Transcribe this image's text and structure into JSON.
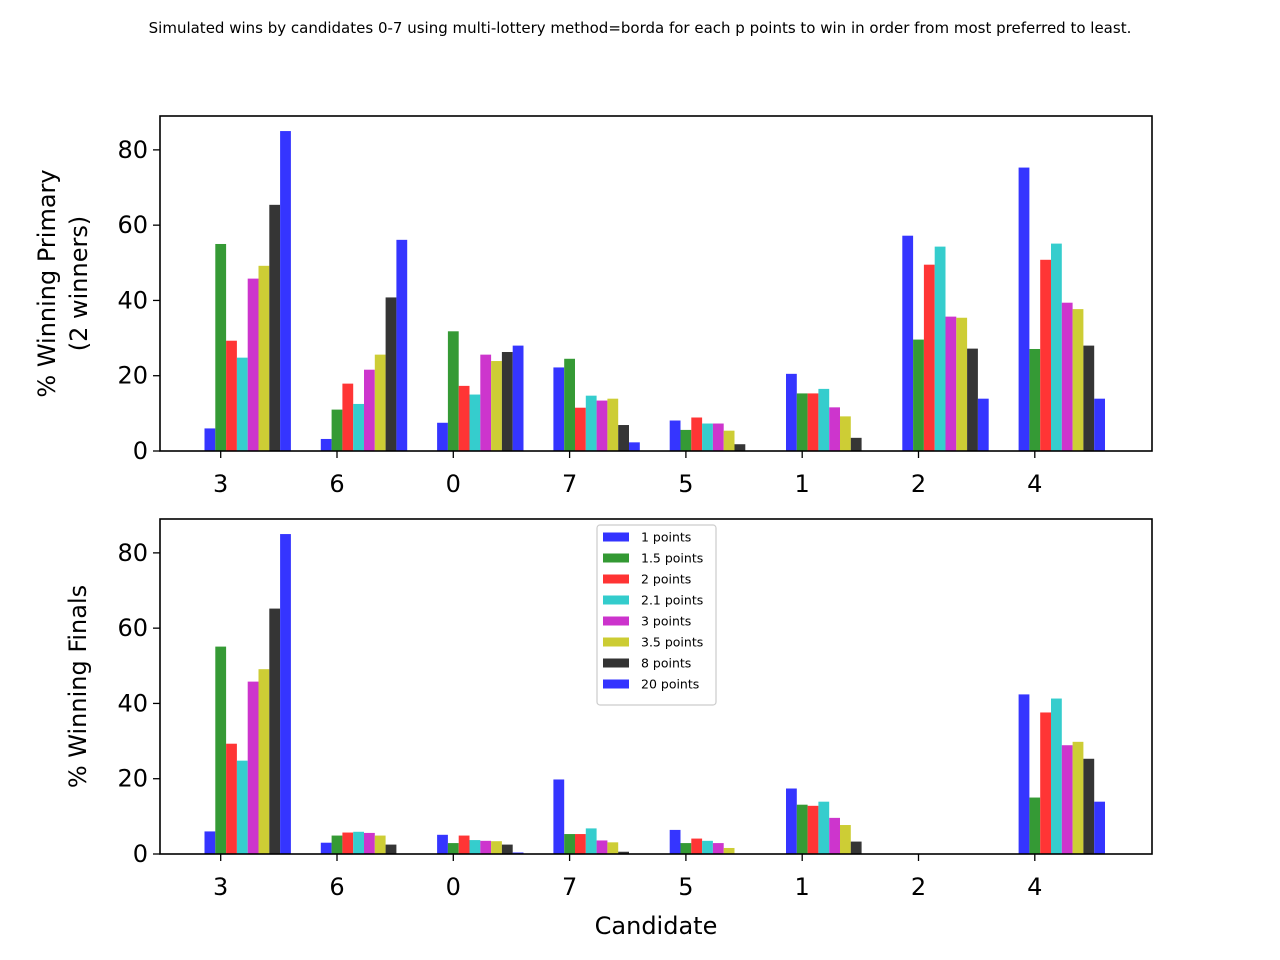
{
  "figure": {
    "title": "Simulated wins by candidates 0-7 using multi-lottery method=borda for each p points to win in order from most preferred to least."
  },
  "chart_data": [
    {
      "type": "bar",
      "ylabel_lines": [
        "% Winning Primary",
        "(2 winners)"
      ],
      "xlabel": "",
      "categories": [
        "3",
        "6",
        "0",
        "7",
        "5",
        "1",
        "2",
        "4"
      ],
      "ylim": [
        0,
        89
      ],
      "yticks": [
        0,
        20,
        40,
        60,
        80
      ],
      "series": [
        {
          "name": "1 points",
          "color": "#3333ff",
          "values": [
            6.0,
            3.2,
            7.5,
            22.2,
            8.1,
            20.5,
            57.2,
            75.3
          ]
        },
        {
          "name": "1.5 points",
          "color": "#339933",
          "values": [
            55.0,
            11.0,
            31.8,
            24.5,
            5.6,
            15.3,
            29.6,
            27.1
          ]
        },
        {
          "name": "2 points",
          "color": "#ff3333",
          "values": [
            29.3,
            17.9,
            17.3,
            11.5,
            8.9,
            15.3,
            49.5,
            50.8
          ]
        },
        {
          "name": "2.1 points",
          "color": "#33cccc",
          "values": [
            24.8,
            12.5,
            15.0,
            14.7,
            7.3,
            16.5,
            54.3,
            55.1
          ]
        },
        {
          "name": "3 points",
          "color": "#cc33cc",
          "values": [
            45.8,
            21.6,
            25.6,
            13.4,
            7.3,
            11.6,
            35.7,
            39.4
          ]
        },
        {
          "name": "3.5 points",
          "color": "#cccc33",
          "values": [
            49.2,
            25.6,
            23.9,
            13.9,
            5.4,
            9.2,
            35.4,
            37.7
          ]
        },
        {
          "name": "8 points",
          "color": "#333333",
          "values": [
            65.4,
            40.8,
            26.3,
            6.9,
            1.8,
            3.5,
            27.2,
            28.0
          ]
        },
        {
          "name": "20 points",
          "color": "#3333ff",
          "values": [
            85.0,
            56.1,
            28.0,
            2.3,
            0.0,
            0.0,
            13.9,
            13.9
          ]
        }
      ]
    },
    {
      "type": "bar",
      "ylabel_lines": [
        "% Winning Finals"
      ],
      "xlabel": "Candidate",
      "categories": [
        "3",
        "6",
        "0",
        "7",
        "5",
        "1",
        "2",
        "4"
      ],
      "ylim": [
        0,
        89
      ],
      "yticks": [
        0,
        20,
        40,
        60,
        80
      ],
      "legend": "upper center",
      "series": [
        {
          "name": "1 points",
          "color": "#3333ff",
          "values": [
            6.0,
            3.0,
            5.1,
            19.8,
            6.4,
            17.4,
            0.0,
            42.4
          ]
        },
        {
          "name": "1.5 points",
          "color": "#339933",
          "values": [
            55.1,
            4.9,
            2.9,
            5.3,
            2.9,
            13.1,
            0.0,
            15.0
          ]
        },
        {
          "name": "2 points",
          "color": "#ff3333",
          "values": [
            29.3,
            5.7,
            4.9,
            5.3,
            4.1,
            12.8,
            0.0,
            37.6
          ]
        },
        {
          "name": "2.1 points",
          "color": "#33cccc",
          "values": [
            24.8,
            5.9,
            3.7,
            6.8,
            3.5,
            13.9,
            0.0,
            41.3
          ]
        },
        {
          "name": "3 points",
          "color": "#cc33cc",
          "values": [
            45.8,
            5.6,
            3.5,
            3.6,
            2.9,
            9.6,
            0.0,
            28.9
          ]
        },
        {
          "name": "3.5 points",
          "color": "#cccc33",
          "values": [
            49.1,
            4.9,
            3.4,
            3.1,
            1.6,
            7.7,
            0.0,
            29.8
          ]
        },
        {
          "name": "8 points",
          "color": "#333333",
          "values": [
            65.2,
            2.5,
            2.5,
            0.6,
            0.0,
            3.3,
            0.0,
            25.3
          ]
        },
        {
          "name": "20 points",
          "color": "#3333ff",
          "values": [
            85.0,
            0.0,
            0.4,
            0.0,
            0.0,
            0.0,
            0.0,
            13.9
          ]
        }
      ]
    }
  ]
}
